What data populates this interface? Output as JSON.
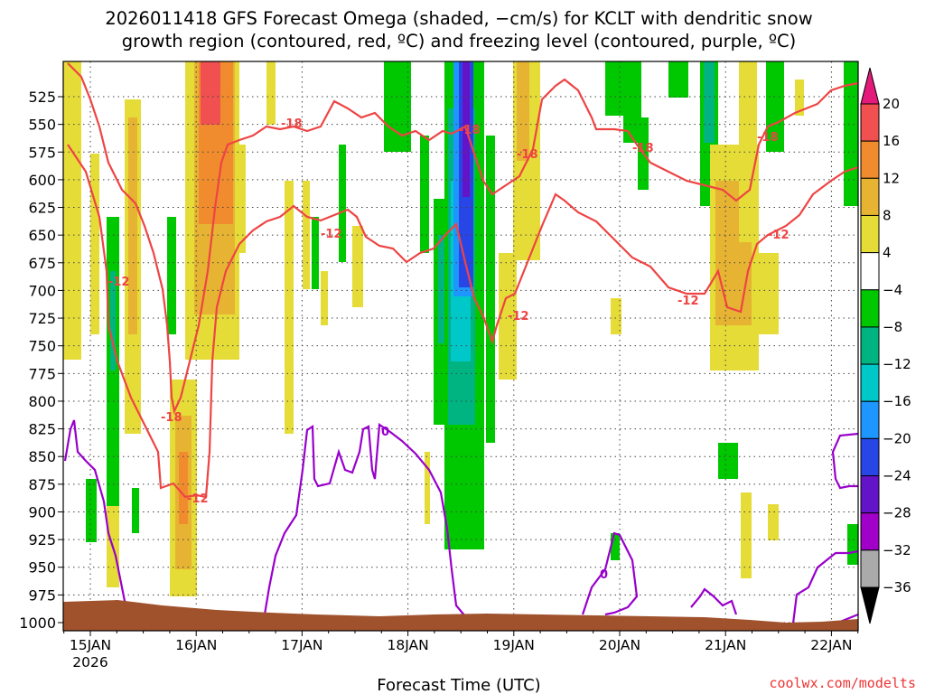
{
  "chart_data": {
    "type": "heatmap",
    "title_line1": "2026011418 GFS Forecast Omega (shaded, −cm/s) for KCLT with dendritic snow",
    "title_line2": "growth region (contoured, red, ºC) and freezing level (contoured, purple, ºC)",
    "xlabel": "Forecast Time (UTC)",
    "credit": "coolwx.com/modelts",
    "y_levels_hpa": [
      "525",
      "550",
      "575",
      "600",
      "625",
      "650",
      "675",
      "700",
      "725",
      "750",
      "775",
      "800",
      "825",
      "850",
      "875",
      "900",
      "925",
      "950",
      "975",
      "1000"
    ],
    "x_ticks": [
      "15JAN",
      "16JAN",
      "17JAN",
      "18JAN",
      "19JAN",
      "20JAN",
      "21JAN",
      "22JAN"
    ],
    "x_sub_label": "2026",
    "grid": "dotted",
    "legend_position": "right",
    "colorbar": {
      "labels": [
        "20",
        "16",
        "12",
        "8",
        "4",
        "−4",
        "−8",
        "−12",
        "−16",
        "−20",
        "−24",
        "−28",
        "−32",
        "−36"
      ],
      "colors": [
        "#e31a7a",
        "#f05050",
        "#f08c2e",
        "#e6b432",
        "#e6dc38",
        "#ffffff",
        "#00c800",
        "#00b482",
        "#00c8c8",
        "#1e96ff",
        "#2846e6",
        "#6414c8",
        "#a000c8",
        "#aaaaaa",
        "#000000"
      ]
    },
    "contour_labels": {
      "dgz_top": "-18",
      "dgz_bottom": "-12",
      "freezing": "0"
    }
  }
}
